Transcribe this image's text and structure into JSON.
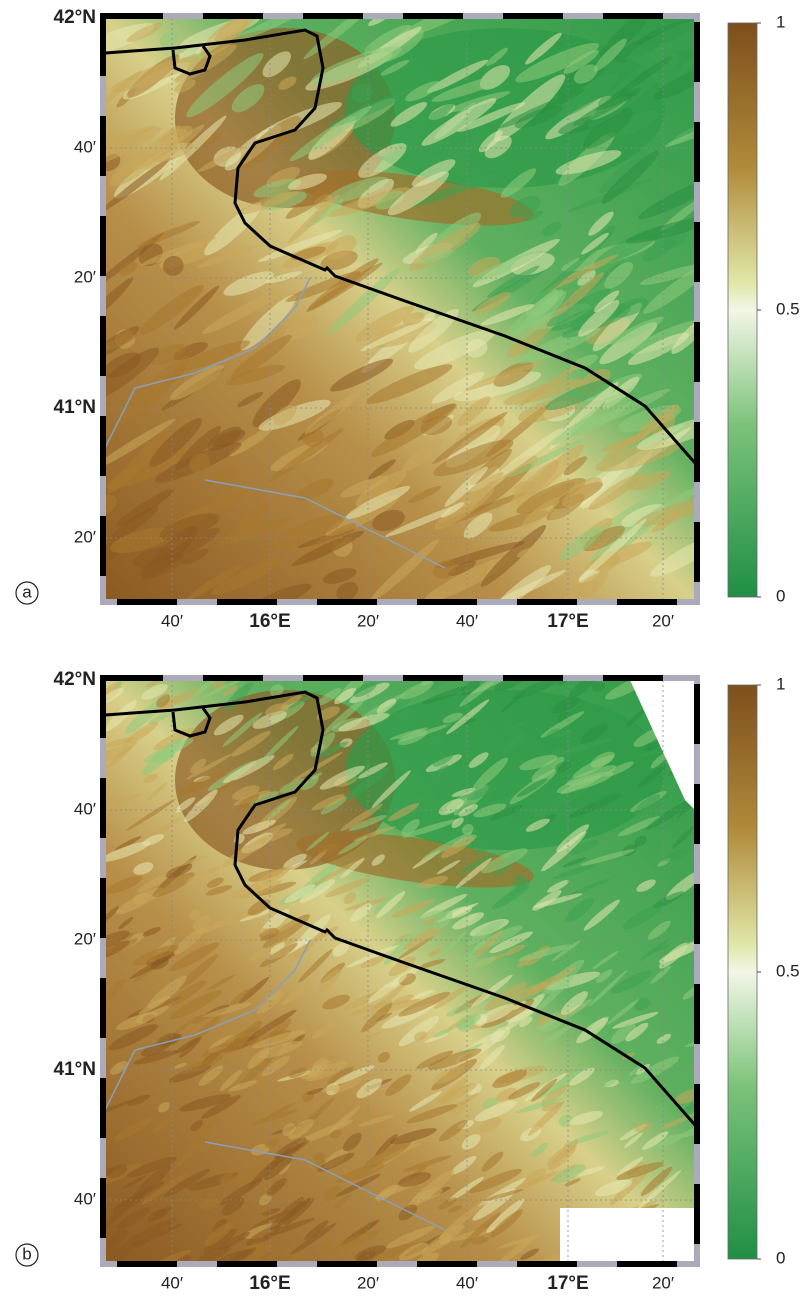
{
  "panels": [
    {
      "label": "a",
      "y_labels": [
        "42°N",
        "40′",
        "20′",
        "41°N",
        "20′"
      ],
      "x_labels": [
        "40′",
        "16°E",
        "20′",
        "40′",
        "17°E",
        "20′"
      ],
      "colorbar": {
        "lim": [
          0,
          1
        ],
        "ticks": [
          0,
          0.5,
          1
        ]
      }
    },
    {
      "label": "b",
      "y_labels": [
        "42°N",
        "40′",
        "20′",
        "41°N",
        "40′"
      ],
      "x_labels": [
        "40′",
        "16°E",
        "20′",
        "40′",
        "17°E",
        "20′"
      ],
      "colorbar": {
        "lim": [
          0,
          1
        ],
        "ticks": [
          0,
          0.5,
          1
        ]
      }
    }
  ]
}
